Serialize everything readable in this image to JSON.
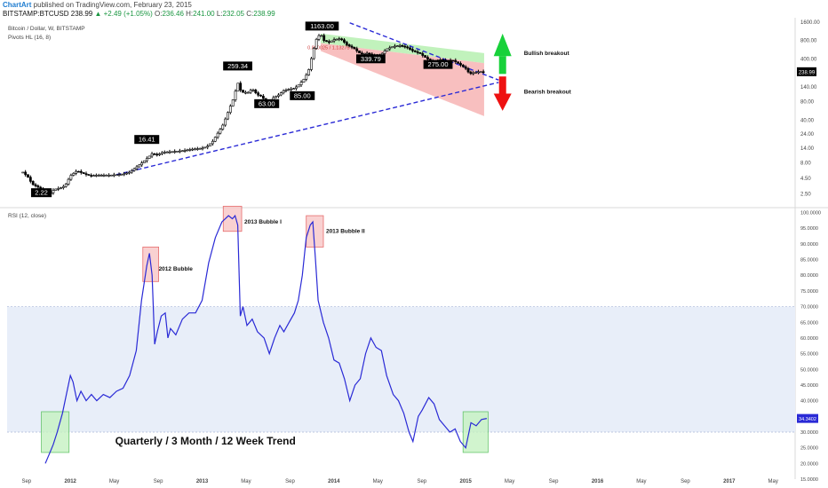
{
  "header": {
    "brand": "ChartArt",
    "published": " published on TradingView.com, February 23, 2015",
    "symbol": "BITSTAMP:BTCUSD",
    "last": "238.99",
    "change": "▲ +2.49 (+1.05%)",
    "o_label": "O:",
    "o_value": "236.46",
    "h_label": "H:",
    "h_value": "241.00",
    "l_label": "L:",
    "l_value": "232.05",
    "c_label": "C:",
    "c_value": "238.99"
  },
  "colors": {
    "candle": "#000000",
    "trendline": "#2a2ad6",
    "rsi_line": "#2a2ad6",
    "rsi_band": "#e8eef9",
    "green_channel": "#b6f0b0",
    "red_channel": "#f7b4b4",
    "bull_arrow": "#18d13a",
    "bear_arrow": "#ee1111",
    "bubble_box": "#e04848",
    "bubble_fill": "#f8c6c6",
    "green_box": "#44b84a",
    "green_fill": "#c6f2c2",
    "price_badge": "#000000",
    "rsi_badge": "#2a2ad6"
  },
  "chart_data": [
    {
      "type": "candlestick",
      "title": "Bitcoin / Dollar, W, BITSTAMP",
      "indicator": "Pivots HL (16, 8)",
      "scale": "log",
      "ylim": [
        1.6,
        1700
      ],
      "y_ticks": [
        "1600.00",
        "800.00",
        "400.00",
        "240.00",
        "140.00",
        "80.00",
        "40.00",
        "24.00",
        "14.00",
        "8.00",
        "4.50",
        "2.50"
      ],
      "y_tick_values": [
        1600,
        800,
        400,
        240,
        140,
        80,
        40,
        24,
        14,
        8,
        4.5,
        2.5
      ],
      "x_tick_labels": [
        "Sep",
        "2012",
        "May",
        "Sep",
        "2013",
        "May",
        "Sep",
        "2014",
        "May",
        "Sep",
        "2015",
        "May",
        "Sep",
        "2016",
        "May",
        "Sep",
        "2017",
        "May"
      ],
      "x_tick_dates": [
        2011.667,
        2012.0,
        2012.333,
        2012.667,
        2013.0,
        2013.333,
        2013.667,
        2014.0,
        2014.333,
        2014.667,
        2015.0,
        2015.333,
        2015.667,
        2016.0,
        2016.333,
        2016.667,
        2017.0,
        2017.333
      ],
      "price_anchors": [
        [
          2011.64,
          5.5
        ],
        [
          2011.68,
          4.5
        ],
        [
          2011.71,
          3.5
        ],
        [
          2011.77,
          3.0
        ],
        [
          2011.8,
          2.5
        ],
        [
          2011.84,
          2.4
        ],
        [
          2011.88,
          2.9
        ],
        [
          2011.92,
          3.0
        ],
        [
          2011.96,
          3.3
        ],
        [
          2012.0,
          4.8
        ],
        [
          2012.05,
          5.8
        ],
        [
          2012.1,
          5.2
        ],
        [
          2012.15,
          4.8
        ],
        [
          2012.2,
          4.9
        ],
        [
          2012.3,
          4.9
        ],
        [
          2012.4,
          5.1
        ],
        [
          2012.45,
          5.5
        ],
        [
          2012.5,
          6.6
        ],
        [
          2012.55,
          8.0
        ],
        [
          2012.62,
          11.0
        ],
        [
          2012.66,
          10.5
        ],
        [
          2012.7,
          11.6
        ],
        [
          2012.78,
          11.9
        ],
        [
          2012.85,
          12.3
        ],
        [
          2012.92,
          13.0
        ],
        [
          2013.0,
          13.5
        ],
        [
          2013.04,
          14.5
        ],
        [
          2013.08,
          17.5
        ],
        [
          2013.12,
          24.0
        ],
        [
          2013.16,
          33.0
        ],
        [
          2013.2,
          55.0
        ],
        [
          2013.24,
          90.0
        ],
        [
          2013.27,
          160.0
        ],
        [
          2013.29,
          120.0
        ],
        [
          2013.31,
          110.0
        ],
        [
          2013.35,
          110.0
        ],
        [
          2013.38,
          125.0
        ],
        [
          2013.42,
          100.0
        ],
        [
          2013.45,
          95.0
        ],
        [
          2013.48,
          80.0
        ],
        [
          2013.5,
          68.0
        ],
        [
          2013.54,
          90.0
        ],
        [
          2013.58,
          100.0
        ],
        [
          2013.62,
          118.0
        ],
        [
          2013.66,
          124.0
        ],
        [
          2013.7,
          128.0
        ],
        [
          2013.74,
          150.0
        ],
        [
          2013.78,
          190.0
        ],
        [
          2013.81,
          260.0
        ],
        [
          2013.84,
          500.0
        ],
        [
          2013.87,
          850.0
        ],
        [
          2013.9,
          1000.0
        ],
        [
          2013.92,
          780.0
        ],
        [
          2013.96,
          720.0
        ],
        [
          2014.0,
          800.0
        ],
        [
          2014.05,
          830.0
        ],
        [
          2014.1,
          650.0
        ],
        [
          2014.15,
          580.0
        ],
        [
          2014.2,
          470.0
        ],
        [
          2014.25,
          480.0
        ],
        [
          2014.3,
          440.0
        ],
        [
          2014.35,
          440.0
        ],
        [
          2014.4,
          560.0
        ],
        [
          2014.45,
          620.0
        ],
        [
          2014.5,
          640.0
        ],
        [
          2014.55,
          600.0
        ],
        [
          2014.6,
          520.0
        ],
        [
          2014.65,
          480.0
        ],
        [
          2014.7,
          400.0
        ],
        [
          2014.73,
          360.0
        ],
        [
          2014.77,
          330.0
        ],
        [
          2014.8,
          380.0
        ],
        [
          2014.85,
          360.0
        ],
        [
          2014.9,
          370.0
        ],
        [
          2014.95,
          320.0
        ],
        [
          2015.0,
          270.0
        ],
        [
          2015.03,
          220.0
        ],
        [
          2015.06,
          230.0
        ],
        [
          2015.1,
          240.0
        ],
        [
          2015.14,
          239.0
        ]
      ],
      "pivot_labels": [
        {
          "text": "1163.00",
          "x": 2013.91,
          "y": 1163
        },
        {
          "text": "259.34",
          "x": 2013.27,
          "y": 259.34
        },
        {
          "text": "16.41",
          "x": 2012.58,
          "y": 16.41
        },
        {
          "text": "2.22",
          "x": 2011.78,
          "y": 2.22
        },
        {
          "text": "63.00",
          "x": 2013.49,
          "y": 63
        },
        {
          "text": "85.00",
          "x": 2013.76,
          "y": 85
        },
        {
          "text": "339.79",
          "x": 2014.28,
          "y": 339.79
        },
        {
          "text": "275.00",
          "x": 2014.79,
          "y": 275
        }
      ],
      "fib_text": "0.880025 / 1.13275",
      "annotations": [
        "Bullish breakout",
        "Bearish breakout"
      ],
      "last_price_label": "238.99",
      "last_price": 238.99
    },
    {
      "type": "line",
      "title": "RSI (12, close)",
      "ylim": [
        15,
        101
      ],
      "y_ticks": [
        "100.0000",
        "95.0000",
        "90.0000",
        "85.0000",
        "80.0000",
        "75.0000",
        "70.0000",
        "65.0000",
        "60.0000",
        "55.0000",
        "50.0000",
        "45.0000",
        "40.0000",
        "35.0000",
        "30.0000",
        "25.0000",
        "20.0000",
        "15.0000"
      ],
      "y_tick_values": [
        100,
        95,
        90,
        85,
        80,
        75,
        70,
        65,
        60,
        55,
        50,
        45,
        40,
        35,
        30,
        25,
        20,
        15
      ],
      "band": [
        30,
        70
      ],
      "series": [
        {
          "points": [
            [
              2011.81,
              20
            ],
            [
              2011.84,
              23
            ],
            [
              2011.87,
              26
            ],
            [
              2011.9,
              30
            ],
            [
              2011.94,
              36
            ],
            [
              2011.97,
              42
            ],
            [
              2012.0,
              48
            ],
            [
              2012.02,
              46
            ],
            [
              2012.05,
              40
            ],
            [
              2012.08,
              43
            ],
            [
              2012.12,
              40
            ],
            [
              2012.16,
              42
            ],
            [
              2012.2,
              40
            ],
            [
              2012.25,
              42
            ],
            [
              2012.3,
              41
            ],
            [
              2012.35,
              43
            ],
            [
              2012.4,
              44
            ],
            [
              2012.45,
              48
            ],
            [
              2012.5,
              56
            ],
            [
              2012.54,
              72
            ],
            [
              2012.58,
              83
            ],
            [
              2012.6,
              87
            ],
            [
              2012.62,
              80
            ],
            [
              2012.64,
              58
            ],
            [
              2012.66,
              62
            ],
            [
              2012.69,
              67
            ],
            [
              2012.72,
              68
            ],
            [
              2012.74,
              60
            ],
            [
              2012.76,
              63
            ],
            [
              2012.8,
              61
            ],
            [
              2012.85,
              66
            ],
            [
              2012.9,
              68
            ],
            [
              2012.95,
              68
            ],
            [
              2013.0,
              72
            ],
            [
              2013.05,
              84
            ],
            [
              2013.1,
              92
            ],
            [
              2013.15,
              97
            ],
            [
              2013.2,
              99
            ],
            [
              2013.23,
              98
            ],
            [
              2013.25,
              99
            ],
            [
              2013.27,
              96
            ],
            [
              2013.29,
              67
            ],
            [
              2013.31,
              70
            ],
            [
              2013.34,
              64
            ],
            [
              2013.38,
              66
            ],
            [
              2013.42,
              62
            ],
            [
              2013.47,
              60
            ],
            [
              2013.51,
              55
            ],
            [
              2013.55,
              60
            ],
            [
              2013.59,
              64
            ],
            [
              2013.62,
              62
            ],
            [
              2013.66,
              65
            ],
            [
              2013.7,
              68
            ],
            [
              2013.73,
              72
            ],
            [
              2013.76,
              80
            ],
            [
              2013.79,
              92
            ],
            [
              2013.82,
              96
            ],
            [
              2013.84,
              97
            ],
            [
              2013.86,
              85
            ],
            [
              2013.88,
              72
            ],
            [
              2013.92,
              65
            ],
            [
              2013.96,
              60
            ],
            [
              2014.0,
              53
            ],
            [
              2014.04,
              52
            ],
            [
              2014.08,
              47
            ],
            [
              2014.12,
              40
            ],
            [
              2014.16,
              45
            ],
            [
              2014.2,
              47
            ],
            [
              2014.24,
              55
            ],
            [
              2014.28,
              60
            ],
            [
              2014.32,
              57
            ],
            [
              2014.36,
              56
            ],
            [
              2014.4,
              48
            ],
            [
              2014.45,
              42
            ],
            [
              2014.49,
              40
            ],
            [
              2014.53,
              36
            ],
            [
              2014.57,
              30
            ],
            [
              2014.6,
              27
            ],
            [
              2014.64,
              35
            ],
            [
              2014.67,
              37
            ],
            [
              2014.72,
              41
            ],
            [
              2014.76,
              39
            ],
            [
              2014.8,
              34
            ],
            [
              2014.84,
              32
            ],
            [
              2014.88,
              30
            ],
            [
              2014.92,
              31
            ],
            [
              2014.96,
              27
            ],
            [
              2015.0,
              25
            ],
            [
              2015.04,
              33
            ],
            [
              2015.08,
              32
            ],
            [
              2015.12,
              34
            ],
            [
              2015.16,
              34.34
            ]
          ]
        }
      ],
      "box_labels": [
        "2012 Bubble",
        "2013 Bubble I",
        "2013 Bubble II"
      ],
      "footer_text": "Quarterly / 3 Month / 12 Week Trend",
      "last_value_label": "34.3402",
      "last_value": 34.34
    }
  ]
}
